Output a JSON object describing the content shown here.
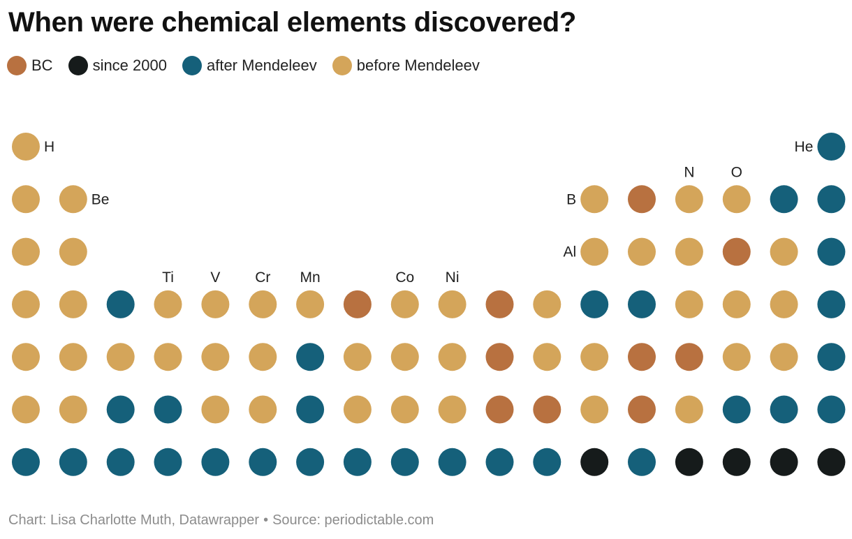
{
  "title": "When were chemical elements discovered?",
  "legend": [
    {
      "key": "bc",
      "label": "BC"
    },
    {
      "key": "since2000",
      "label": "since 2000"
    },
    {
      "key": "after",
      "label": "after Mendeleev"
    },
    {
      "key": "before",
      "label": "before Mendeleev"
    }
  ],
  "colors": {
    "bc": "#b87140",
    "since2000": "#161b1b",
    "after": "#15607a",
    "before": "#d4a55a"
  },
  "footer": {
    "credit": "Chart: Lisa Charlotte Muth, Datawrapper",
    "separator": "•",
    "source": "Source: periodictable.com"
  },
  "chart_data": {
    "type": "scatter",
    "title": "When were chemical elements discovered?",
    "layout": "periodic-table",
    "columns": 18,
    "rows": 7,
    "legend_position": "top-left",
    "grid": false,
    "categories": [
      "bc",
      "since2000",
      "after",
      "before"
    ],
    "points": [
      {
        "period": 1,
        "group": 1,
        "cat": "before",
        "label": "H",
        "label_pos": "right"
      },
      {
        "period": 1,
        "group": 18,
        "cat": "after",
        "label": "He",
        "label_pos": "left"
      },
      {
        "period": 2,
        "group": 1,
        "cat": "before"
      },
      {
        "period": 2,
        "group": 2,
        "cat": "before",
        "label": "Be",
        "label_pos": "right"
      },
      {
        "period": 2,
        "group": 13,
        "cat": "before",
        "label": "B",
        "label_pos": "left"
      },
      {
        "period": 2,
        "group": 14,
        "cat": "bc"
      },
      {
        "period": 2,
        "group": 15,
        "cat": "before",
        "label": "N",
        "label_pos": "top"
      },
      {
        "period": 2,
        "group": 16,
        "cat": "before",
        "label": "O",
        "label_pos": "top"
      },
      {
        "period": 2,
        "group": 17,
        "cat": "after"
      },
      {
        "period": 2,
        "group": 18,
        "cat": "after"
      },
      {
        "period": 3,
        "group": 1,
        "cat": "before"
      },
      {
        "period": 3,
        "group": 2,
        "cat": "before"
      },
      {
        "period": 3,
        "group": 13,
        "cat": "before",
        "label": "Al",
        "label_pos": "left"
      },
      {
        "period": 3,
        "group": 14,
        "cat": "before"
      },
      {
        "period": 3,
        "group": 15,
        "cat": "before"
      },
      {
        "period": 3,
        "group": 16,
        "cat": "bc"
      },
      {
        "period": 3,
        "group": 17,
        "cat": "before"
      },
      {
        "period": 3,
        "group": 18,
        "cat": "after"
      },
      {
        "period": 4,
        "group": 1,
        "cat": "before"
      },
      {
        "period": 4,
        "group": 2,
        "cat": "before"
      },
      {
        "period": 4,
        "group": 3,
        "cat": "after"
      },
      {
        "period": 4,
        "group": 4,
        "cat": "before",
        "label": "Ti",
        "label_pos": "top"
      },
      {
        "period": 4,
        "group": 5,
        "cat": "before",
        "label": "V",
        "label_pos": "top"
      },
      {
        "period": 4,
        "group": 6,
        "cat": "before",
        "label": "Cr",
        "label_pos": "top"
      },
      {
        "period": 4,
        "group": 7,
        "cat": "before",
        "label": "Mn",
        "label_pos": "top"
      },
      {
        "period": 4,
        "group": 8,
        "cat": "bc"
      },
      {
        "period": 4,
        "group": 9,
        "cat": "before",
        "label": "Co",
        "label_pos": "top"
      },
      {
        "period": 4,
        "group": 10,
        "cat": "before",
        "label": "Ni",
        "label_pos": "top"
      },
      {
        "period": 4,
        "group": 11,
        "cat": "bc"
      },
      {
        "period": 4,
        "group": 12,
        "cat": "before"
      },
      {
        "period": 4,
        "group": 13,
        "cat": "after"
      },
      {
        "period": 4,
        "group": 14,
        "cat": "after"
      },
      {
        "period": 4,
        "group": 15,
        "cat": "before"
      },
      {
        "period": 4,
        "group": 16,
        "cat": "before"
      },
      {
        "period": 4,
        "group": 17,
        "cat": "before"
      },
      {
        "period": 4,
        "group": 18,
        "cat": "after"
      },
      {
        "period": 5,
        "group": 1,
        "cat": "before"
      },
      {
        "period": 5,
        "group": 2,
        "cat": "before"
      },
      {
        "period": 5,
        "group": 3,
        "cat": "before"
      },
      {
        "period": 5,
        "group": 4,
        "cat": "before"
      },
      {
        "period": 5,
        "group": 5,
        "cat": "before"
      },
      {
        "period": 5,
        "group": 6,
        "cat": "before"
      },
      {
        "period": 5,
        "group": 7,
        "cat": "after"
      },
      {
        "period": 5,
        "group": 8,
        "cat": "before"
      },
      {
        "period": 5,
        "group": 9,
        "cat": "before"
      },
      {
        "period": 5,
        "group": 10,
        "cat": "before"
      },
      {
        "period": 5,
        "group": 11,
        "cat": "bc"
      },
      {
        "period": 5,
        "group": 12,
        "cat": "before"
      },
      {
        "period": 5,
        "group": 13,
        "cat": "before"
      },
      {
        "period": 5,
        "group": 14,
        "cat": "bc"
      },
      {
        "period": 5,
        "group": 15,
        "cat": "bc"
      },
      {
        "period": 5,
        "group": 16,
        "cat": "before"
      },
      {
        "period": 5,
        "group": 17,
        "cat": "before"
      },
      {
        "period": 5,
        "group": 18,
        "cat": "after"
      },
      {
        "period": 6,
        "group": 1,
        "cat": "before"
      },
      {
        "period": 6,
        "group": 2,
        "cat": "before"
      },
      {
        "period": 6,
        "group": 3,
        "cat": "after"
      },
      {
        "period": 6,
        "group": 4,
        "cat": "after"
      },
      {
        "period": 6,
        "group": 5,
        "cat": "before"
      },
      {
        "period": 6,
        "group": 6,
        "cat": "before"
      },
      {
        "period": 6,
        "group": 7,
        "cat": "after"
      },
      {
        "period": 6,
        "group": 8,
        "cat": "before"
      },
      {
        "period": 6,
        "group": 9,
        "cat": "before"
      },
      {
        "period": 6,
        "group": 10,
        "cat": "before"
      },
      {
        "period": 6,
        "group": 11,
        "cat": "bc"
      },
      {
        "period": 6,
        "group": 12,
        "cat": "bc"
      },
      {
        "period": 6,
        "group": 13,
        "cat": "before"
      },
      {
        "period": 6,
        "group": 14,
        "cat": "bc"
      },
      {
        "period": 6,
        "group": 15,
        "cat": "before"
      },
      {
        "period": 6,
        "group": 16,
        "cat": "after"
      },
      {
        "period": 6,
        "group": 17,
        "cat": "after"
      },
      {
        "period": 6,
        "group": 18,
        "cat": "after"
      },
      {
        "period": 7,
        "group": 1,
        "cat": "after"
      },
      {
        "period": 7,
        "group": 2,
        "cat": "after"
      },
      {
        "period": 7,
        "group": 3,
        "cat": "after"
      },
      {
        "period": 7,
        "group": 4,
        "cat": "after"
      },
      {
        "period": 7,
        "group": 5,
        "cat": "after"
      },
      {
        "period": 7,
        "group": 6,
        "cat": "after"
      },
      {
        "period": 7,
        "group": 7,
        "cat": "after"
      },
      {
        "period": 7,
        "group": 8,
        "cat": "after"
      },
      {
        "period": 7,
        "group": 9,
        "cat": "after"
      },
      {
        "period": 7,
        "group": 10,
        "cat": "after"
      },
      {
        "period": 7,
        "group": 11,
        "cat": "after"
      },
      {
        "period": 7,
        "group": 12,
        "cat": "after"
      },
      {
        "period": 7,
        "group": 13,
        "cat": "since2000"
      },
      {
        "period": 7,
        "group": 14,
        "cat": "after"
      },
      {
        "period": 7,
        "group": 15,
        "cat": "since2000"
      },
      {
        "period": 7,
        "group": 16,
        "cat": "since2000"
      },
      {
        "period": 7,
        "group": 17,
        "cat": "since2000"
      },
      {
        "period": 7,
        "group": 18,
        "cat": "since2000"
      }
    ]
  }
}
